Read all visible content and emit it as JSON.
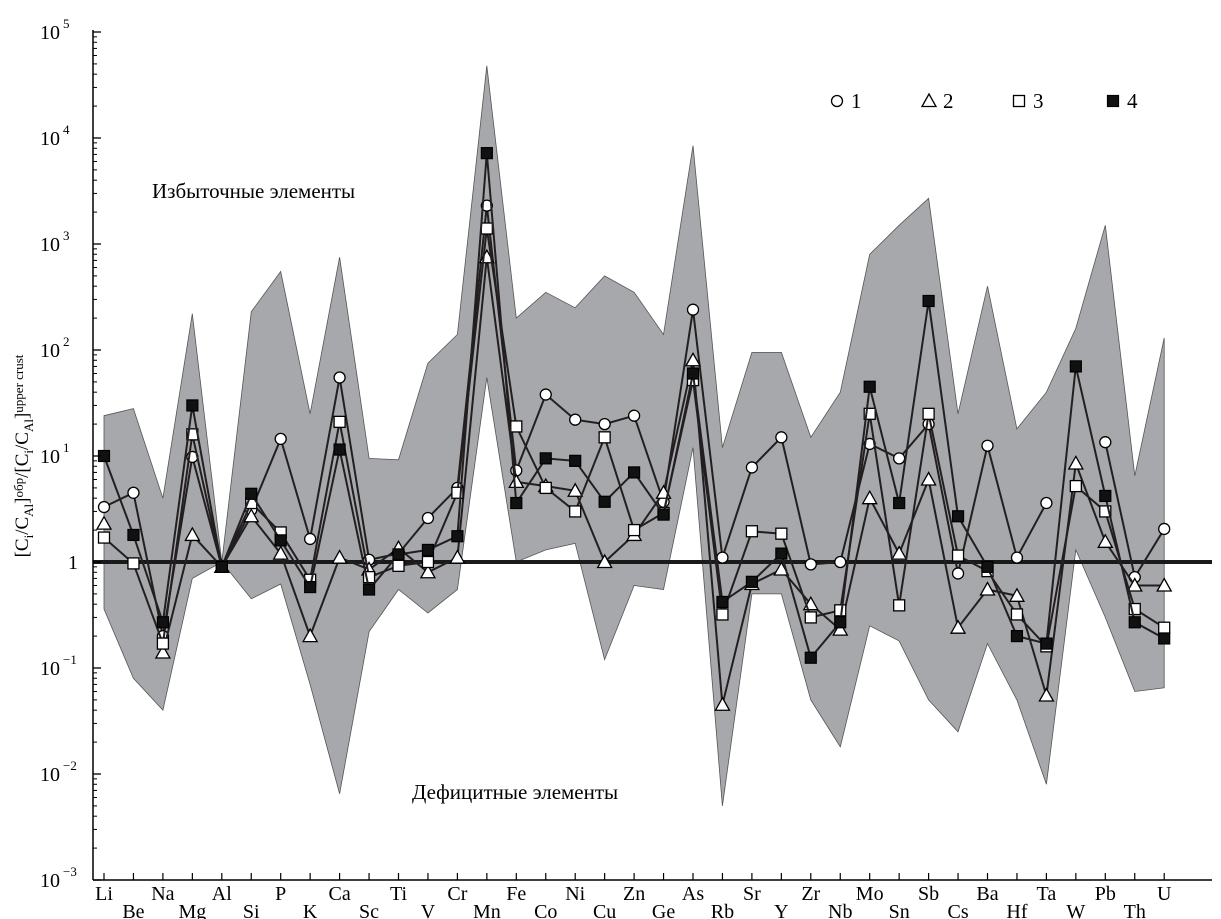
{
  "chart_data": {
    "type": "line",
    "y_scale": "log",
    "ylim": [
      0.001,
      100000
    ],
    "y_ticks": [
      {
        "value": 100000,
        "base": "10",
        "exp": "5"
      },
      {
        "value": 10000,
        "base": "10",
        "exp": "4"
      },
      {
        "value": 1000,
        "base": "10",
        "exp": "3"
      },
      {
        "value": 100,
        "base": "10",
        "exp": "2"
      },
      {
        "value": 10,
        "base": "10",
        "exp": "1"
      },
      {
        "value": 1,
        "base": "1",
        "exp": ""
      },
      {
        "value": 0.1,
        "base": "10",
        "exp": "−1"
      },
      {
        "value": 0.01,
        "base": "10",
        "exp": "−2"
      },
      {
        "value": 0.001,
        "base": "10",
        "exp": "−3"
      }
    ],
    "ylabel": {
      "part1": "[C",
      "sub1": "i",
      "part2": "/C",
      "sub2": "Al",
      "part3": "]",
      "sup1": "обр",
      "part4": "/[C",
      "sub3": "i",
      "part5": "/C",
      "sub4": "Al",
      "part6": "]",
      "sup2": "upper crust"
    },
    "categories": [
      "Li",
      "Be",
      "Na",
      "Mg",
      "Al",
      "Si",
      "P",
      "K",
      "Ca",
      "Sc",
      "Ti",
      "V",
      "Cr",
      "Mn",
      "Fe",
      "Co",
      "Ni",
      "Cu",
      "Zn",
      "Ge",
      "As",
      "Rb",
      "Sr",
      "Y",
      "Zr",
      "Nb",
      "Mo",
      "Sn",
      "Sb",
      "Cs",
      "Ba",
      "Hf",
      "Ta",
      "W",
      "Pb",
      "Th",
      "U"
    ],
    "reference_line": 1,
    "range_band": {
      "upper": [
        24,
        28,
        4,
        220,
        1,
        230,
        550,
        25,
        750,
        9.5,
        9.2,
        75,
        140,
        48000,
        200,
        350,
        250,
        500,
        350,
        140,
        8500,
        12,
        95,
        95,
        15,
        40,
        800,
        1500,
        2700,
        25,
        400,
        18,
        40,
        160,
        1500,
        6.5,
        130
      ],
      "lower": [
        0.36,
        0.08,
        0.04,
        0.7,
        1,
        0.45,
        0.62,
        0.07,
        0.0065,
        0.22,
        0.55,
        0.33,
        0.55,
        55,
        1,
        1.3,
        1.5,
        0.12,
        0.6,
        0.55,
        12,
        0.005,
        0.5,
        0.5,
        0.05,
        0.018,
        0.25,
        0.18,
        0.05,
        0.025,
        0.17,
        0.05,
        0.008,
        1.3,
        0.3,
        0.06,
        0.065
      ]
    },
    "series": [
      {
        "name": "1",
        "marker": "circle",
        "values": [
          3.3,
          4.5,
          0.2,
          9.8,
          0.9,
          3.1,
          14.5,
          1.65,
          55,
          1.05,
          1.2,
          2.6,
          5,
          2300,
          7.3,
          38,
          22,
          20,
          24,
          3.7,
          240,
          1.1,
          7.8,
          15,
          0.95,
          1.0,
          13,
          9.5,
          20,
          0.78,
          12.5,
          1.1,
          3.6,
          null,
          13.5,
          0.72,
          2.05
        ]
      },
      {
        "name": "2",
        "marker": "triangle",
        "values": [
          2.3,
          null,
          0.14,
          1.8,
          0.9,
          2.7,
          1.2,
          0.2,
          1.1,
          0.85,
          1.35,
          0.8,
          1.1,
          750,
          5.7,
          5.2,
          4.7,
          1.0,
          1.8,
          4.5,
          80,
          0.045,
          0.62,
          0.85,
          0.4,
          0.23,
          4,
          1.2,
          6,
          0.24,
          0.55,
          0.48,
          0.055,
          8.5,
          1.55,
          0.6,
          0.6
        ]
      },
      {
        "name": "3",
        "marker": "square",
        "values": [
          1.7,
          0.97,
          0.17,
          16,
          0.9,
          3.6,
          1.9,
          0.68,
          21,
          0.72,
          0.92,
          1.0,
          4.5,
          1400,
          19,
          5.0,
          3.0,
          15,
          2.0,
          2.9,
          52,
          0.32,
          1.95,
          1.85,
          0.3,
          0.35,
          25,
          0.39,
          25,
          1.15,
          0.82,
          0.32,
          0.16,
          5.2,
          3.0,
          0.36,
          0.24
        ]
      },
      {
        "name": "4",
        "marker": "filled-square",
        "values": [
          10,
          1.8,
          0.27,
          30,
          0.9,
          4.4,
          1.6,
          0.58,
          11.5,
          0.55,
          1.18,
          1.3,
          1.75,
          7200,
          3.6,
          9.5,
          9.0,
          3.7,
          7.0,
          2.8,
          60,
          0.42,
          0.65,
          1.2,
          0.125,
          0.27,
          45,
          3.6,
          290,
          2.7,
          0.9,
          0.2,
          0.17,
          70,
          4.2,
          0.27,
          0.19
        ]
      }
    ],
    "legend": {
      "placement": "top-right",
      "entries": [
        "1",
        "2",
        "3",
        "4"
      ]
    },
    "annotations": {
      "top": "Избыточные элементы",
      "bottom": "Дефицитные элементы"
    },
    "colors": {
      "band": "#a6a8ab",
      "lines": "#231f20",
      "reference": "#1a1a1a"
    }
  }
}
